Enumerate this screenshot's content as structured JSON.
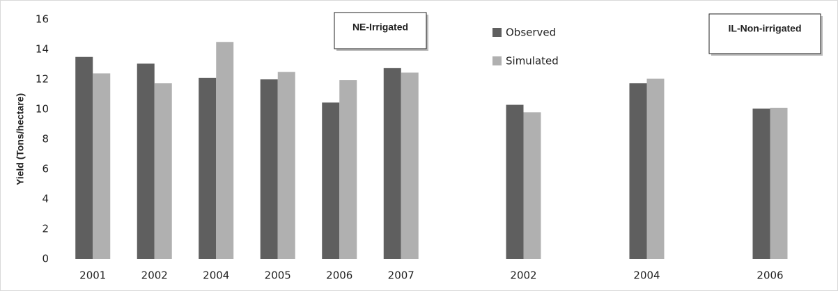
{
  "chart_data": [
    {
      "type": "bar",
      "ylabel": "Yield (Tons/hectare)",
      "annotation": "NE-Irrigated",
      "categories": [
        "2001",
        "2002",
        "2004",
        "2005",
        "2006",
        "2007"
      ],
      "series": [
        {
          "name": "Observed",
          "color": "#5f5f5f",
          "values": [
            13.5,
            13.05,
            12.1,
            12.0,
            10.45,
            12.75
          ]
        },
        {
          "name": "Simulated",
          "color": "#b0b0b0",
          "values": [
            12.4,
            11.75,
            14.5,
            12.5,
            11.95,
            12.45
          ]
        }
      ],
      "ylim": [
        0,
        16
      ],
      "yticks": [
        0,
        2,
        4,
        6,
        8,
        10,
        12,
        14,
        16
      ],
      "grid": false
    },
    {
      "type": "bar",
      "annotation": "IL-Non-irrigated",
      "categories": [
        "2002",
        "2004",
        "2006"
      ],
      "series": [
        {
          "color": "#5f5f5f",
          "values": [
            10.3,
            11.75,
            10.05
          ]
        },
        {
          "color": "#b0b0b0",
          "values": [
            9.8,
            12.05,
            10.1
          ]
        }
      ],
      "ylim": [
        0,
        16
      ],
      "grid": false
    }
  ]
}
